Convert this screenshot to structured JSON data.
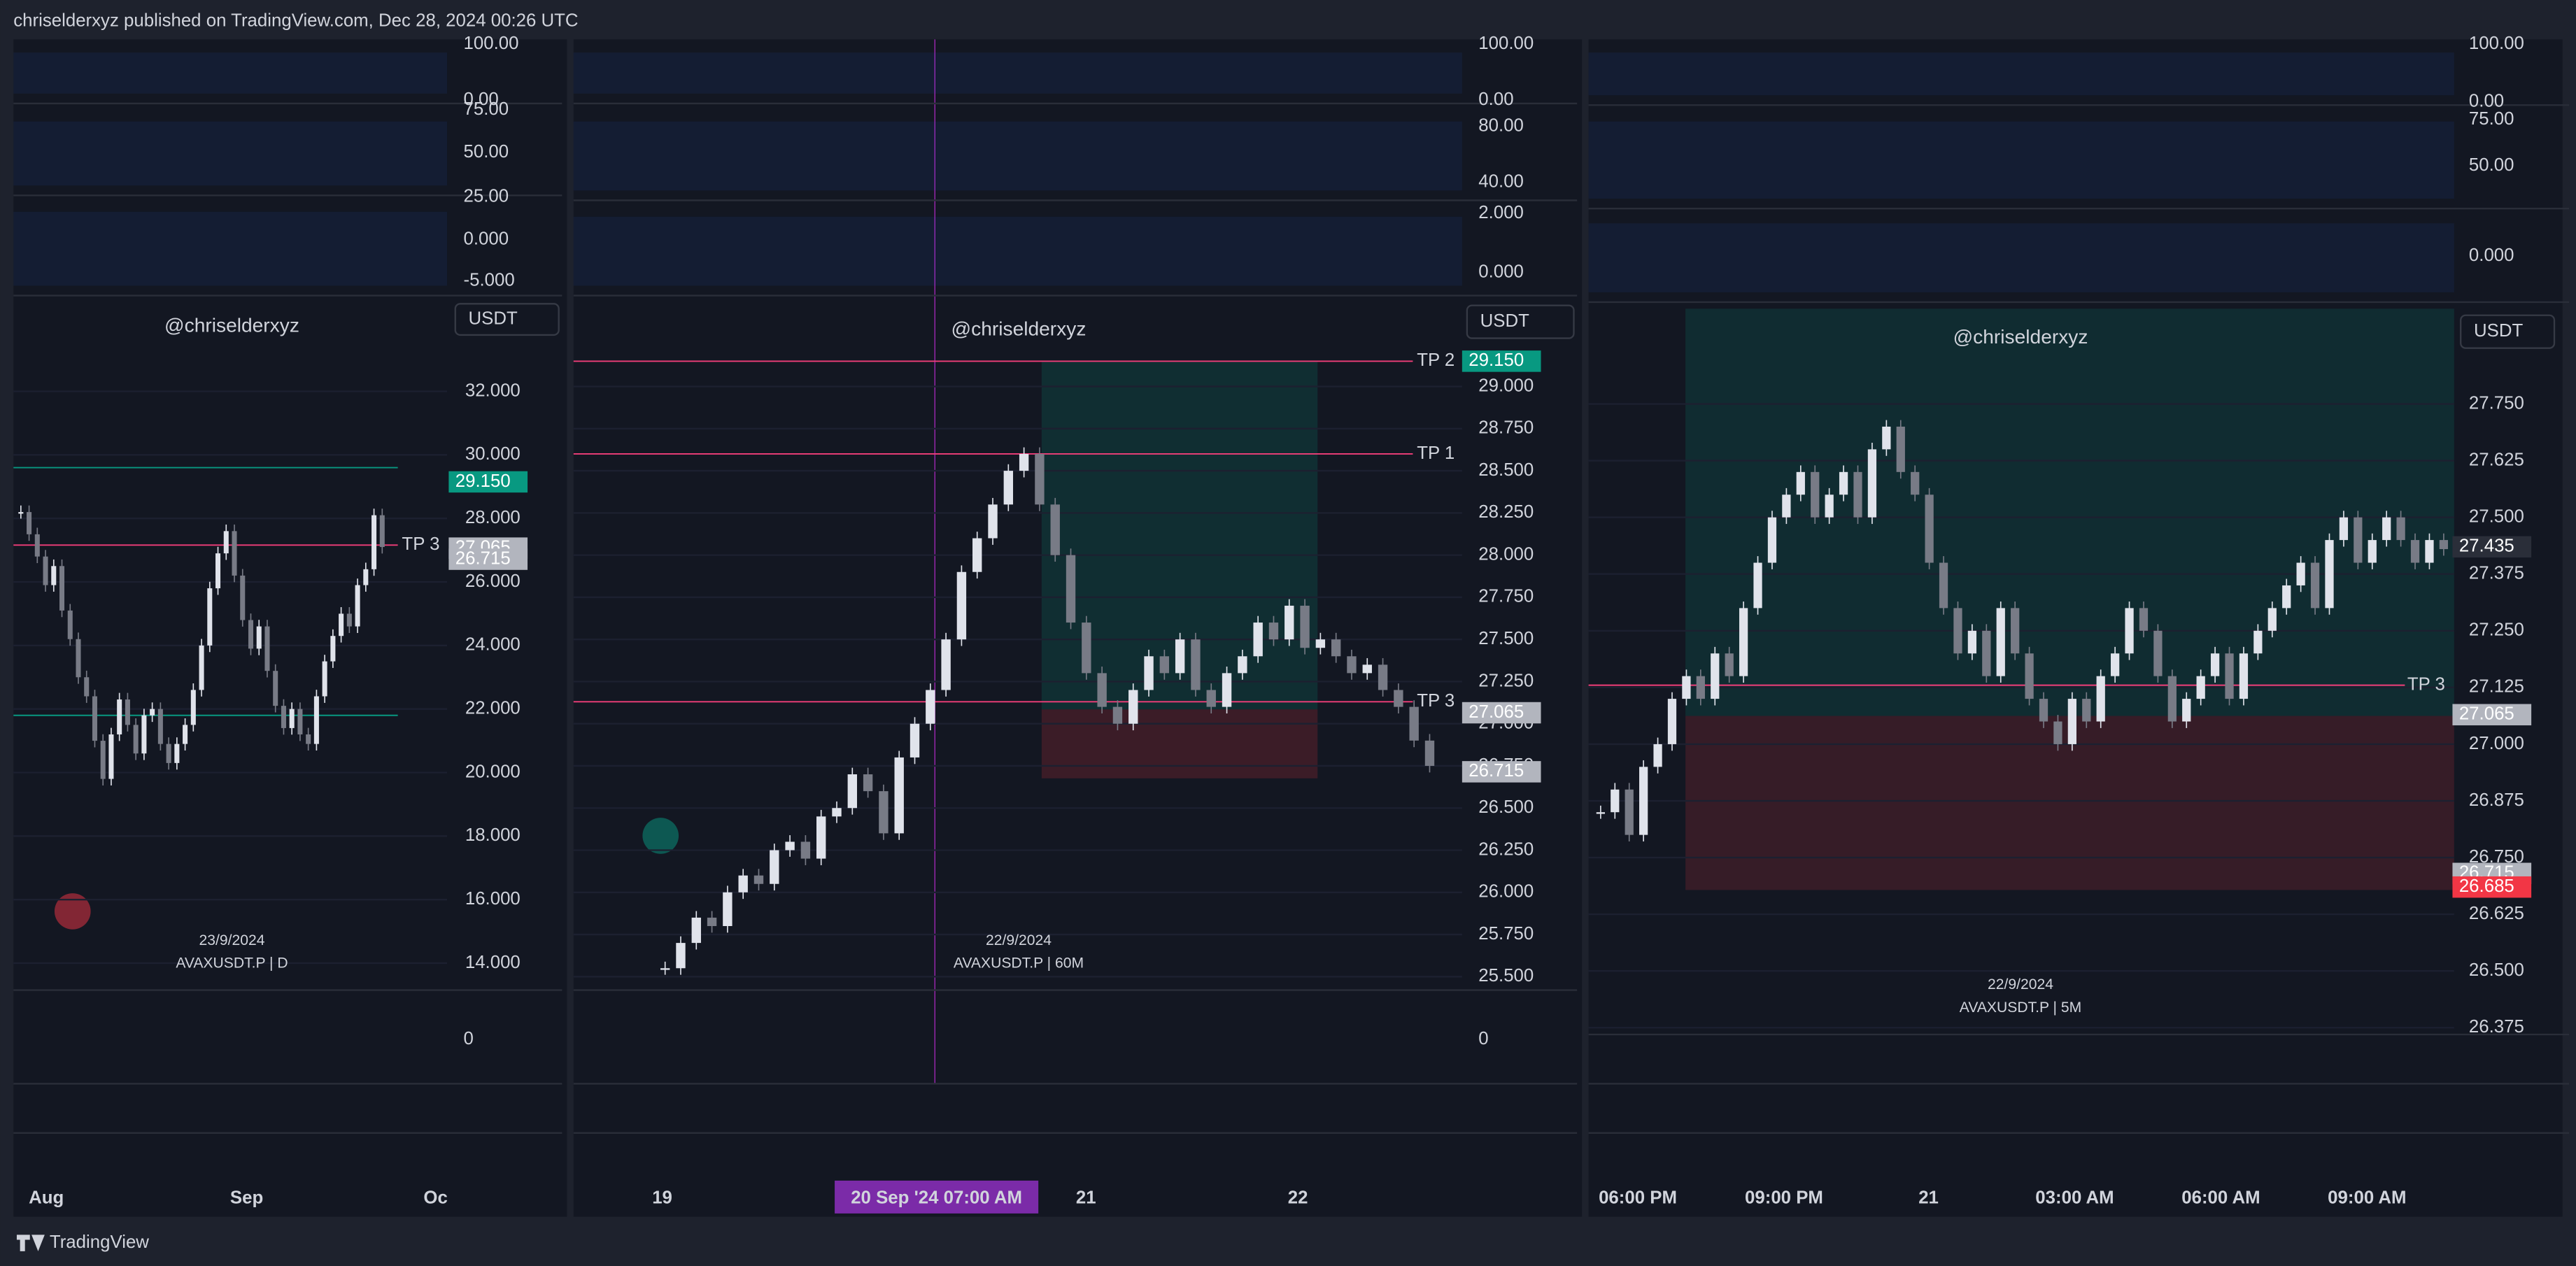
{
  "header": {
    "text": "chriselderxyz published on TradingView.com, Dec 28, 2024 00:26 UTC"
  },
  "footer": {
    "brand": "TradingView"
  },
  "panels": [
    {
      "watermark": "@chriselderxyz",
      "date": "23/9/2024",
      "symbol": "AVAXUSDT.P | D",
      "currency": "USDT",
      "ylim": [
        13.15,
        34.86
      ],
      "yticks": [
        {
          "value": 32,
          "label": "32.000"
        },
        {
          "value": 30,
          "label": "30.000"
        },
        {
          "value": 28,
          "label": "28.000"
        },
        {
          "value": 26,
          "label": "26.000"
        },
        {
          "value": 24,
          "label": "24.000"
        },
        {
          "value": 22,
          "label": "22.000"
        },
        {
          "value": 20,
          "label": "20.000"
        },
        {
          "value": 18,
          "label": "18.000"
        },
        {
          "value": 16,
          "label": "16.000"
        },
        {
          "value": 14,
          "label": "14.000"
        }
      ],
      "price_tags": [
        {
          "value": 29.15,
          "label": "29.150",
          "color": "#089981"
        },
        {
          "value": 27.065,
          "label": "27.065",
          "color": "#b2b5be"
        },
        {
          "value": 26.715,
          "label": "26.715",
          "color": "#b2b5be"
        }
      ],
      "levels": [
        {
          "value": 29.6,
          "color": "#089981"
        },
        {
          "value": 27.16,
          "label": "TP 3",
          "color": "#f23e7a"
        },
        {
          "value": 21.8,
          "color": "#089981"
        }
      ],
      "time_axis": [
        "Aug",
        "Sep",
        "Oc"
      ],
      "indicator_labels": [
        "100.00",
        "0.00",
        "75.00",
        "50.00",
        "25.00",
        "0.000",
        "-5.000"
      ],
      "bottom_label": "0",
      "closes": [
        28.2,
        27.5,
        26.8,
        25.9,
        26.5,
        25.1,
        24.2,
        23.0,
        22.4,
        21.0,
        19.8,
        21.2,
        22.3,
        21.5,
        20.6,
        21.8,
        22.0,
        20.9,
        20.3,
        20.9,
        21.5,
        22.6,
        24.0,
        25.8,
        26.9,
        27.6,
        26.2,
        24.8,
        23.9,
        24.6,
        23.2,
        22.1,
        21.4,
        22.0,
        21.2,
        20.9,
        22.4,
        23.5,
        24.3,
        25.0,
        24.6,
        25.9,
        26.4,
        28.1,
        27.1
      ]
    },
    {
      "watermark": "@chriselderxyz",
      "date": "22/9/2024",
      "symbol": "AVAXUSDT.P | 60M",
      "currency": "USDT",
      "ylim": [
        25.42,
        29.51
      ],
      "yticks": [
        {
          "value": 29,
          "label": "29.000"
        },
        {
          "value": 28.75,
          "label": "28.750"
        },
        {
          "value": 28.5,
          "label": "28.500"
        },
        {
          "value": 28.25,
          "label": "28.250"
        },
        {
          "value": 28,
          "label": "28.000"
        },
        {
          "value": 27.75,
          "label": "27.750"
        },
        {
          "value": 27.5,
          "label": "27.500"
        },
        {
          "value": 27.25,
          "label": "27.250"
        },
        {
          "value": 27,
          "label": "27.000"
        },
        {
          "value": 26.75,
          "label": "26.750"
        },
        {
          "value": 26.5,
          "label": "26.500"
        },
        {
          "value": 26.25,
          "label": "26.250"
        },
        {
          "value": 26,
          "label": "26.000"
        },
        {
          "value": 25.75,
          "label": "25.750"
        },
        {
          "value": 25.5,
          "label": "25.500"
        }
      ],
      "price_tags": [
        {
          "value": 29.15,
          "label": "29.150",
          "color": "#089981"
        },
        {
          "value": 27.065,
          "label": "27.065",
          "color": "#b2b5be"
        },
        {
          "value": 26.715,
          "label": "26.715",
          "color": "#b2b5be"
        }
      ],
      "levels": [
        {
          "value": 29.15,
          "label": "TP 2",
          "color": "#f23e7a"
        },
        {
          "value": 28.6,
          "label": "TP 1",
          "color": "#f23e7a"
        },
        {
          "value": 27.13,
          "label": "TP 3",
          "color": "#f23e7a"
        }
      ],
      "time_axis": [
        "19",
        "20 Sep '24   07:00 AM",
        "21",
        "22"
      ],
      "indicator_labels": [
        "100.00",
        "0.00",
        "80.00",
        "40.00",
        "2.000",
        "0.000"
      ],
      "bottom_label": "0",
      "closes": [
        25.55,
        25.7,
        25.85,
        25.8,
        26.0,
        26.1,
        26.05,
        26.25,
        26.3,
        26.2,
        26.45,
        26.5,
        26.7,
        26.6,
        26.35,
        26.8,
        27.0,
        27.2,
        27.5,
        27.9,
        28.1,
        28.3,
        28.5,
        28.6,
        28.3,
        28.0,
        27.6,
        27.3,
        27.1,
        27.0,
        27.2,
        27.4,
        27.3,
        27.5,
        27.2,
        27.1,
        27.3,
        27.4,
        27.6,
        27.5,
        27.7,
        27.45,
        27.5,
        27.4,
        27.3,
        27.35,
        27.2,
        27.1,
        26.9,
        26.75
      ]
    },
    {
      "watermark": "@chriselderxyz",
      "date": "22/9/2024",
      "symbol": "AVAXUSDT.P | 5M",
      "currency": "USDT",
      "ylim": [
        26.36,
        27.96
      ],
      "yticks": [
        {
          "value": 27.75,
          "label": "27.750"
        },
        {
          "value": 27.625,
          "label": "27.625"
        },
        {
          "value": 27.5,
          "label": "27.500"
        },
        {
          "value": 27.375,
          "label": "27.375"
        },
        {
          "value": 27.25,
          "label": "27.250"
        },
        {
          "value": 27.125,
          "label": "27.125"
        },
        {
          "value": 27,
          "label": "27.000"
        },
        {
          "value": 26.875,
          "label": "26.875"
        },
        {
          "value": 26.75,
          "label": "26.750"
        },
        {
          "value": 26.625,
          "label": "26.625"
        },
        {
          "value": 26.5,
          "label": "26.500"
        },
        {
          "value": 26.375,
          "label": "26.375"
        }
      ],
      "price_tags": [
        {
          "value": 27.435,
          "label": "27.435",
          "color": "#2a2e39"
        },
        {
          "value": 27.065,
          "label": "27.065",
          "color": "#b2b5be"
        },
        {
          "value": 26.715,
          "label": "26.715",
          "color": "#b2b5be"
        },
        {
          "value": 26.685,
          "label": "26.685",
          "color": "#f23645"
        }
      ],
      "levels": [
        {
          "value": 27.13,
          "label": "TP 3",
          "color": "#f23e7a"
        }
      ],
      "time_axis": [
        "06:00 PM",
        "09:00 PM",
        "21",
        "03:00 AM",
        "06:00 AM",
        "09:00 AM"
      ],
      "indicator_labels": [
        "100.00",
        "0.00",
        "75.00",
        "50.00",
        "0.000"
      ],
      "closes": [
        26.85,
        26.9,
        26.8,
        26.95,
        27.0,
        27.1,
        27.15,
        27.1,
        27.2,
        27.15,
        27.3,
        27.4,
        27.5,
        27.55,
        27.6,
        27.5,
        27.55,
        27.6,
        27.5,
        27.65,
        27.7,
        27.6,
        27.55,
        27.4,
        27.3,
        27.2,
        27.25,
        27.15,
        27.3,
        27.2,
        27.1,
        27.05,
        27.0,
        27.1,
        27.05,
        27.15,
        27.2,
        27.3,
        27.25,
        27.15,
        27.05,
        27.1,
        27.15,
        27.2,
        27.1,
        27.2,
        27.25,
        27.3,
        27.35,
        27.4,
        27.3,
        27.45,
        27.5,
        27.4,
        27.45,
        27.5,
        27.45,
        27.4,
        27.45,
        27.43
      ]
    }
  ]
}
